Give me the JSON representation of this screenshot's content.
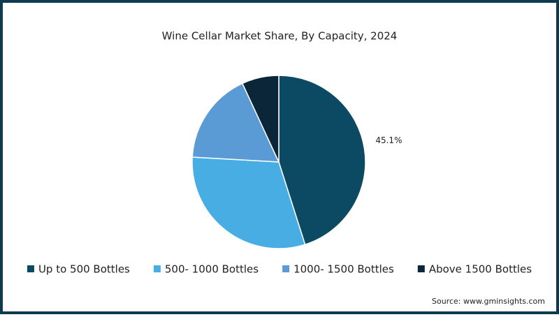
{
  "chart_data": {
    "type": "pie",
    "title": "Wine Cellar Market Share, By Capacity, 2024",
    "categories": [
      "Up to 500 Bottles",
      "500- 1000 Bottles",
      "1000- 1500 Bottles",
      "Above 1500 Bottles"
    ],
    "values": [
      45.1,
      30.8,
      17.2,
      6.9
    ],
    "value_labels": [
      "45.1%",
      null,
      null,
      null
    ],
    "colors": [
      "#0b4a62",
      "#47ade2",
      "#5b9bd5",
      "#0b2638"
    ],
    "legend": "bottom",
    "source": "Source: www.gminsights.com"
  }
}
